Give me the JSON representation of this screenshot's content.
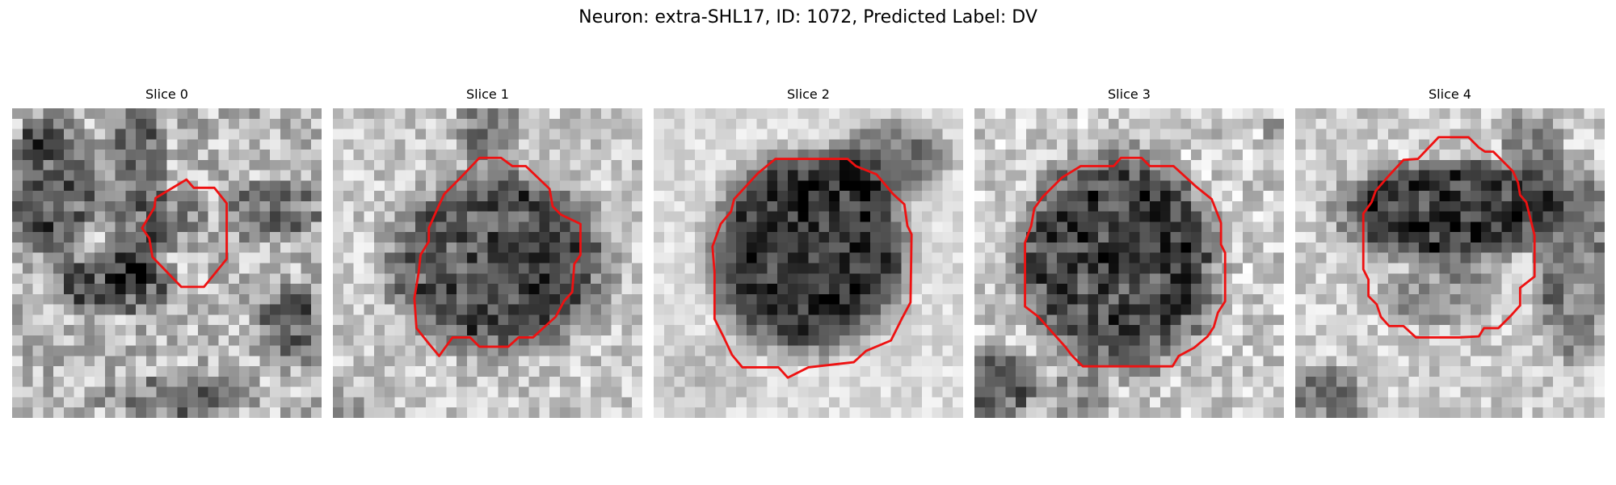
{
  "figure": {
    "title": "Neuron: extra-SHL17, ID: 1072, Predicted Label: DV"
  },
  "panels": [
    {
      "title": "Slice 0",
      "contour_color": "#ee1111"
    },
    {
      "title": "Slice 1",
      "contour_color": "#ee1111"
    },
    {
      "title": "Slice 2",
      "contour_color": "#ee1111"
    },
    {
      "title": "Slice 3",
      "contour_color": "#ee1111"
    },
    {
      "title": "Slice 4",
      "contour_color": "#ee1111"
    }
  ]
}
